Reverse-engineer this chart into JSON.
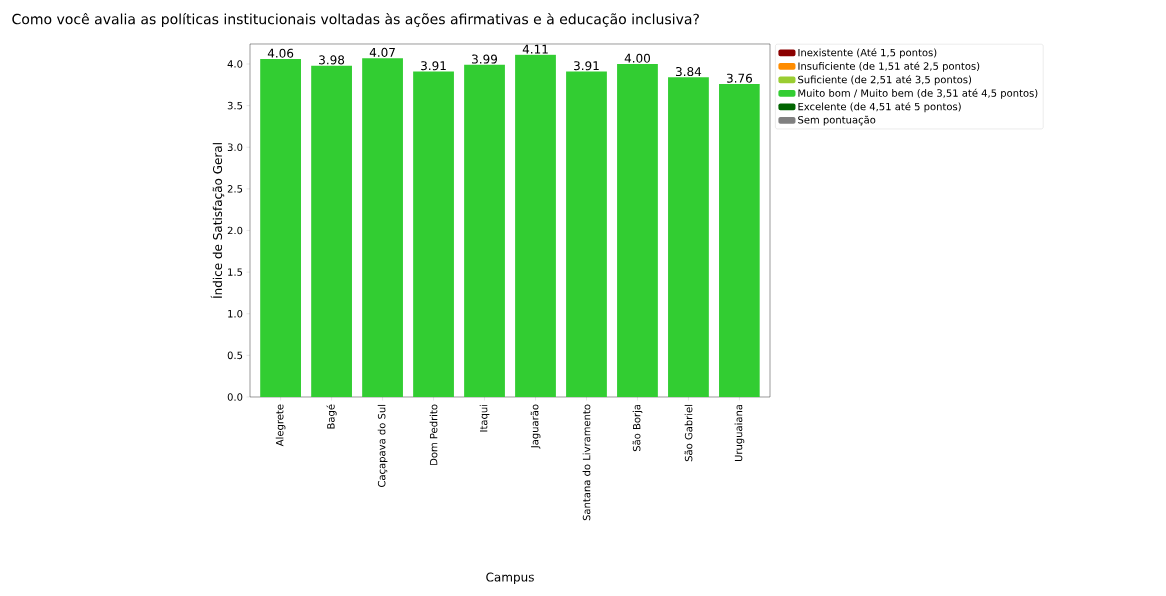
{
  "chart_data": {
    "type": "bar",
    "title": "Como você avalia as políticas institucionais voltadas às ações afirmativas e à educação inclusiva?",
    "xlabel": "Campus",
    "ylabel": "Índice de Satisfação Geral",
    "categories": [
      "Alegrete",
      "Bagé",
      "Caçapava do Sul",
      "Dom Pedrito",
      "Itaqui",
      "Jaguarão",
      "Santana do Livramento",
      "São Borja",
      "São Gabriel",
      "Uruguaiana"
    ],
    "stacked": true,
    "legend": "right",
    "series": [
      {
        "name": "Inexistente (Até 1,5 pontos)",
        "color": "#8b0000",
        "values": [
          null,
          null,
          null,
          null,
          null,
          null,
          null,
          null,
          null,
          null
        ]
      },
      {
        "name": "Insuficiente (de 1,51 até 2,5 pontos)",
        "color": "#ff8c00",
        "values": [
          null,
          null,
          null,
          null,
          null,
          null,
          null,
          null,
          null,
          null
        ]
      },
      {
        "name": "Suficiente (de 2,51 até 3,5 pontos)",
        "color": "#9acd32",
        "values": [
          null,
          null,
          null,
          null,
          null,
          null,
          null,
          null,
          null,
          null
        ]
      },
      {
        "name": "Muito bom / Muito bem (de 3,51 até 4,5 pontos)",
        "color": "#32cd32",
        "values": [
          4.06,
          3.98,
          4.07,
          3.91,
          3.99,
          4.11,
          3.91,
          4.0,
          3.84,
          3.76
        ],
        "value_labels": [
          "4.06",
          "3.98",
          "4.07",
          "3.91",
          "3.99",
          "4.11",
          "3.91",
          "4.00",
          "3.84",
          "3.76"
        ]
      },
      {
        "name": "Excelente (de 4,51 até 5 pontos)",
        "color": "#006400",
        "values": [
          null,
          null,
          null,
          null,
          null,
          null,
          null,
          null,
          null,
          null
        ]
      },
      {
        "name": "Sem pontuação",
        "color": "#808080",
        "values": [
          null,
          null,
          null,
          null,
          null,
          null,
          null,
          null,
          null,
          null
        ]
      }
    ],
    "ylim": [
      0,
      4.24
    ],
    "yticks": [
      {
        "value": 0,
        "label": "0.0"
      },
      {
        "value": 0.5,
        "label": "0.5"
      },
      {
        "value": 1,
        "label": "1.0"
      },
      {
        "value": 1.5,
        "label": "1.5"
      },
      {
        "value": 2,
        "label": "2.0"
      },
      {
        "value": 2.5,
        "label": "2.5"
      },
      {
        "value": 3,
        "label": "3.0"
      },
      {
        "value": 3.5,
        "label": "3.5"
      },
      {
        "value": 4,
        "label": "4.0"
      }
    ]
  }
}
